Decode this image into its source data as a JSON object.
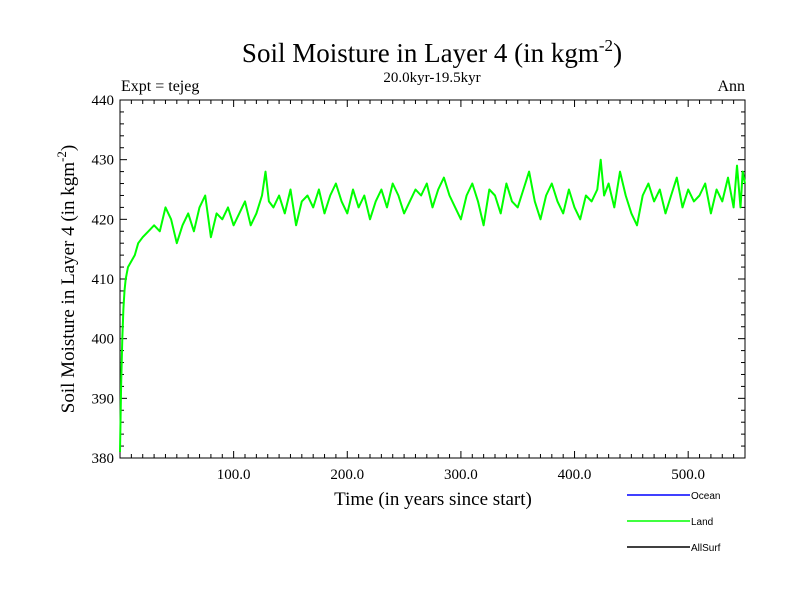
{
  "chart_data": {
    "type": "line",
    "title": "Soil Moisture in Layer 4 (in kgm",
    "title_superscript": "-2",
    "title_close": ")",
    "subtitle": "20.0kyr-19.5kyr",
    "expt_label": "Expt = tejeg",
    "season_label": "Ann",
    "xlabel": "Time (in years since start)",
    "ylabel": "Soil Moisture in Layer 4 (in kgm",
    "ylabel_superscript": "-2",
    "ylabel_close": ")",
    "xlim": [
      0,
      550
    ],
    "ylim": [
      380,
      440
    ],
    "x_ticks": [
      100,
      200,
      300,
      400,
      500
    ],
    "x_tick_labels": [
      "100.0",
      "200.0",
      "300.0",
      "400.0",
      "500.0"
    ],
    "y_ticks": [
      380,
      390,
      400,
      410,
      420,
      430,
      440
    ],
    "y_tick_labels": [
      "380",
      "390",
      "400",
      "410",
      "420",
      "430",
      "440"
    ],
    "legend": [
      {
        "name": "Ocean",
        "color": "#0000ff"
      },
      {
        "name": "Land",
        "color": "#00ff00"
      },
      {
        "name": "AllSurf",
        "color": "#000000"
      }
    ],
    "series": [
      {
        "name": "Land",
        "color": "#00ff00",
        "x": [
          0,
          1,
          2,
          3,
          4,
          5,
          7,
          10,
          13,
          16,
          20,
          25,
          30,
          35,
          40,
          45,
          50,
          55,
          60,
          65,
          70,
          75,
          80,
          85,
          90,
          95,
          100,
          105,
          110,
          115,
          120,
          125,
          128,
          131,
          135,
          140,
          145,
          150,
          155,
          160,
          165,
          170,
          175,
          180,
          185,
          190,
          195,
          200,
          205,
          210,
          215,
          220,
          225,
          230,
          235,
          240,
          245,
          250,
          255,
          260,
          265,
          270,
          275,
          280,
          285,
          290,
          295,
          300,
          305,
          310,
          315,
          320,
          325,
          330,
          335,
          340,
          345,
          350,
          355,
          360,
          365,
          370,
          375,
          380,
          385,
          390,
          395,
          400,
          405,
          410,
          415,
          420,
          423,
          426,
          430,
          435,
          440,
          445,
          450,
          455,
          460,
          465,
          470,
          475,
          480,
          485,
          490,
          495,
          500,
          505,
          510,
          515,
          520,
          525,
          530,
          535,
          540,
          543,
          546,
          548,
          550
        ],
        "values": [
          381,
          392,
          400,
          405,
          408,
          410,
          412,
          413,
          414,
          416,
          417,
          418,
          419,
          418,
          422,
          420,
          416,
          419,
          421,
          418,
          422,
          424,
          417,
          421,
          420,
          422,
          419,
          421,
          423,
          419,
          421,
          424,
          428,
          423,
          422,
          424,
          421,
          425,
          419,
          423,
          424,
          422,
          425,
          421,
          424,
          426,
          423,
          421,
          425,
          422,
          424,
          420,
          423,
          425,
          422,
          426,
          424,
          421,
          423,
          425,
          424,
          426,
          422,
          425,
          427,
          424,
          422,
          420,
          424,
          426,
          423,
          419,
          425,
          424,
          421,
          426,
          423,
          422,
          425,
          428,
          423,
          420,
          424,
          426,
          423,
          421,
          425,
          422,
          420,
          424,
          423,
          425,
          430,
          424,
          426,
          422,
          428,
          424,
          421,
          419,
          424,
          426,
          423,
          425,
          421,
          424,
          427,
          422,
          425,
          423,
          424,
          426,
          421,
          425,
          423,
          427,
          422,
          429,
          422,
          428,
          426
        ]
      }
    ]
  }
}
